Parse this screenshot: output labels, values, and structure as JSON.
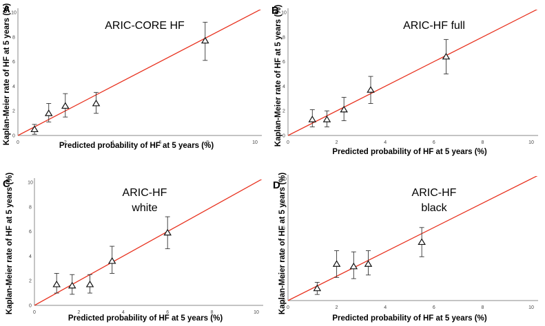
{
  "chart_data": [
    {
      "type": "scatter",
      "panel": "A",
      "title_lines": [
        "ARIC-CORE HF"
      ],
      "xlabel": "Predicted probability of HF at 5 years (%)",
      "ylabel": "Kaplan-Meier rate of HF at 5 years (%)",
      "xlim": [
        0,
        10
      ],
      "ylim": [
        0,
        10
      ],
      "xticks": [
        "0",
        "2",
        "4",
        "6",
        "8",
        "10"
      ],
      "yticks": [
        "0",
        "2",
        "4",
        "6",
        "8",
        "10"
      ],
      "reference_line": "y = x",
      "points": [
        {
          "x": 0.7,
          "y": 0.5,
          "lo": 0.1,
          "hi": 0.9
        },
        {
          "x": 1.3,
          "y": 1.8,
          "lo": 1.1,
          "hi": 2.6
        },
        {
          "x": 2.0,
          "y": 2.4,
          "lo": 1.5,
          "hi": 3.4
        },
        {
          "x": 3.3,
          "y": 2.6,
          "lo": 1.8,
          "hi": 3.5
        },
        {
          "x": 7.9,
          "y": 7.7,
          "lo": 6.1,
          "hi": 9.2
        }
      ]
    },
    {
      "type": "scatter",
      "panel": "B",
      "title_lines": [
        "ARIC-HF full"
      ],
      "xlabel": "Predicted probability of HF at 5 years (%)",
      "ylabel": "Kaplan-Meier rate of HF at 5 years (%)",
      "xlim": [
        0,
        10
      ],
      "ylim": [
        0,
        10
      ],
      "xticks": [
        "0",
        "2",
        "4",
        "6",
        "8",
        "10"
      ],
      "yticks": [
        "0",
        "2",
        "4",
        "6",
        "8",
        "10"
      ],
      "reference_line": "y = x",
      "points": [
        {
          "x": 1.0,
          "y": 1.3,
          "lo": 0.7,
          "hi": 2.1
        },
        {
          "x": 1.6,
          "y": 1.3,
          "lo": 0.7,
          "hi": 2.0
        },
        {
          "x": 2.3,
          "y": 2.1,
          "lo": 1.2,
          "hi": 3.1
        },
        {
          "x": 3.4,
          "y": 3.7,
          "lo": 2.6,
          "hi": 4.8
        },
        {
          "x": 6.5,
          "y": 6.4,
          "lo": 5.0,
          "hi": 7.8
        }
      ]
    },
    {
      "type": "scatter",
      "panel": "C",
      "title_lines": [
        "ARIC-HF",
        "white"
      ],
      "xlabel": "Predicted probability of HF at 5 years (%)",
      "ylabel": "Kaplan-Meier rate of HF at 5 years (%)",
      "xlim": [
        0,
        10
      ],
      "ylim": [
        0,
        10
      ],
      "xticks": [
        "0",
        "2",
        "4",
        "6",
        "8",
        "10"
      ],
      "yticks": [
        "0",
        "2",
        "4",
        "6",
        "8",
        "10"
      ],
      "reference_line": "y = x",
      "points": [
        {
          "x": 1.0,
          "y": 1.7,
          "lo": 1.0,
          "hi": 2.6
        },
        {
          "x": 1.7,
          "y": 1.6,
          "lo": 0.9,
          "hi": 2.5
        },
        {
          "x": 2.5,
          "y": 1.7,
          "lo": 1.0,
          "hi": 2.5
        },
        {
          "x": 3.5,
          "y": 3.6,
          "lo": 2.6,
          "hi": 4.8
        },
        {
          "x": 6.0,
          "y": 5.9,
          "lo": 4.6,
          "hi": 7.2
        }
      ]
    },
    {
      "type": "scatter",
      "panel": "D",
      "title_lines": [
        "ARIC-HF",
        "black"
      ],
      "xlabel": "Predicted probability of HF at 5 years (%)",
      "ylabel": "Kaplan-Meier rate of HF at 5 years (%)",
      "xlim": [
        0,
        10
      ],
      "ylim": [
        0,
        10
      ],
      "xticks": [
        "0",
        "2",
        "4",
        "6",
        "8",
        "10"
      ],
      "yticks": [
        "0",
        "2",
        "4",
        "6",
        "8",
        "10"
      ],
      "reference_line": "y = x",
      "points": [
        {
          "x": 1.2,
          "y": 1.0,
          "lo": 0.5,
          "hi": 1.5
        },
        {
          "x": 2.0,
          "y": 3.0,
          "lo": 1.9,
          "hi": 4.1
        },
        {
          "x": 2.7,
          "y": 2.8,
          "lo": 1.8,
          "hi": 4.0
        },
        {
          "x": 3.3,
          "y": 3.0,
          "lo": 2.1,
          "hi": 4.1
        },
        {
          "x": 5.5,
          "y": 4.8,
          "lo": 3.6,
          "hi": 6.0
        }
      ]
    }
  ],
  "colors": {
    "reference_line": "#e8321f",
    "error_bar": "#333333",
    "marker_stroke": "#111111",
    "axis": "#888888"
  },
  "marker_shape": "open-triangle"
}
